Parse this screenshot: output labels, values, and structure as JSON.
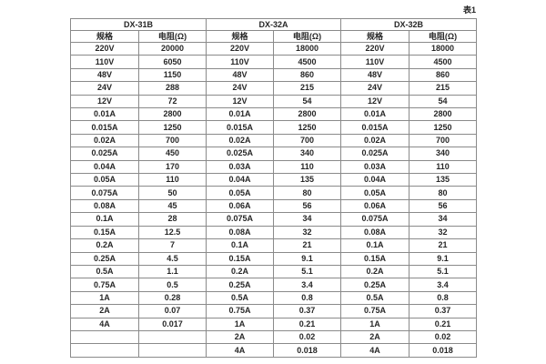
{
  "page": {
    "table_label": "表1"
  },
  "table": {
    "row_count": 24,
    "groups": [
      {
        "name": "DX-31B",
        "col_headers": [
          "规格",
          "电阻(Ω)"
        ],
        "rows": [
          [
            "220V",
            "20000"
          ],
          [
            "110V",
            "6050"
          ],
          [
            "48V",
            "1150"
          ],
          [
            "24V",
            "288"
          ],
          [
            "12V",
            "72"
          ],
          [
            "0.01A",
            "2800"
          ],
          [
            "0.015A",
            "1250"
          ],
          [
            "0.02A",
            "700"
          ],
          [
            "0.025A",
            "450"
          ],
          [
            "0.04A",
            "170"
          ],
          [
            "0.05A",
            "110"
          ],
          [
            "0.075A",
            "50"
          ],
          [
            "0.08A",
            "45"
          ],
          [
            "0.1A",
            "28"
          ],
          [
            "0.15A",
            "12.5"
          ],
          [
            "0.2A",
            "7"
          ],
          [
            "0.25A",
            "4.5"
          ],
          [
            "0.5A",
            "1.1"
          ],
          [
            "0.75A",
            "0.5"
          ],
          [
            "1A",
            "0.28"
          ],
          [
            "2A",
            "0.07"
          ],
          [
            "4A",
            "0.017"
          ],
          [
            "",
            ""
          ],
          [
            "",
            ""
          ]
        ]
      },
      {
        "name": "DX-32A",
        "col_headers": [
          "规格",
          "电阻(Ω)"
        ],
        "rows": [
          [
            "220V",
            "18000"
          ],
          [
            "110V",
            "4500"
          ],
          [
            "48V",
            "860"
          ],
          [
            "24V",
            "215"
          ],
          [
            "12V",
            "54"
          ],
          [
            "0.01A",
            "2800"
          ],
          [
            "0.015A",
            "1250"
          ],
          [
            "0.02A",
            "700"
          ],
          [
            "0.025A",
            "340"
          ],
          [
            "0.03A",
            "110"
          ],
          [
            "0.04A",
            "135"
          ],
          [
            "0.05A",
            "80"
          ],
          [
            "0.06A",
            "56"
          ],
          [
            "0.075A",
            "34"
          ],
          [
            "0.08A",
            "32"
          ],
          [
            "0.1A",
            "21"
          ],
          [
            "0.15A",
            "9.1"
          ],
          [
            "0.2A",
            "5.1"
          ],
          [
            "0.25A",
            "3.4"
          ],
          [
            "0.5A",
            "0.8"
          ],
          [
            "0.75A",
            "0.37"
          ],
          [
            "1A",
            "0.21"
          ],
          [
            "2A",
            "0.02"
          ],
          [
            "4A",
            "0.018"
          ]
        ]
      },
      {
        "name": "DX-32B",
        "col_headers": [
          "规格",
          "电阻(Ω)"
        ],
        "rows": [
          [
            "220V",
            "18000"
          ],
          [
            "110V",
            "4500"
          ],
          [
            "48V",
            "860"
          ],
          [
            "24V",
            "215"
          ],
          [
            "12V",
            "54"
          ],
          [
            "0.01A",
            "2800"
          ],
          [
            "0.015A",
            "1250"
          ],
          [
            "0.02A",
            "700"
          ],
          [
            "0.025A",
            "340"
          ],
          [
            "0.03A",
            "110"
          ],
          [
            "0.04A",
            "135"
          ],
          [
            "0.05A",
            "80"
          ],
          [
            "0.06A",
            "56"
          ],
          [
            "0.075A",
            "34"
          ],
          [
            "0.08A",
            "32"
          ],
          [
            "0.1A",
            "21"
          ],
          [
            "0.15A",
            "9.1"
          ],
          [
            "0.2A",
            "5.1"
          ],
          [
            "0.25A",
            "3.4"
          ],
          [
            "0.5A",
            "0.8"
          ],
          [
            "0.75A",
            "0.37"
          ],
          [
            "1A",
            "0.21"
          ],
          [
            "2A",
            "0.02"
          ],
          [
            "4A",
            "0.018"
          ]
        ]
      }
    ]
  }
}
